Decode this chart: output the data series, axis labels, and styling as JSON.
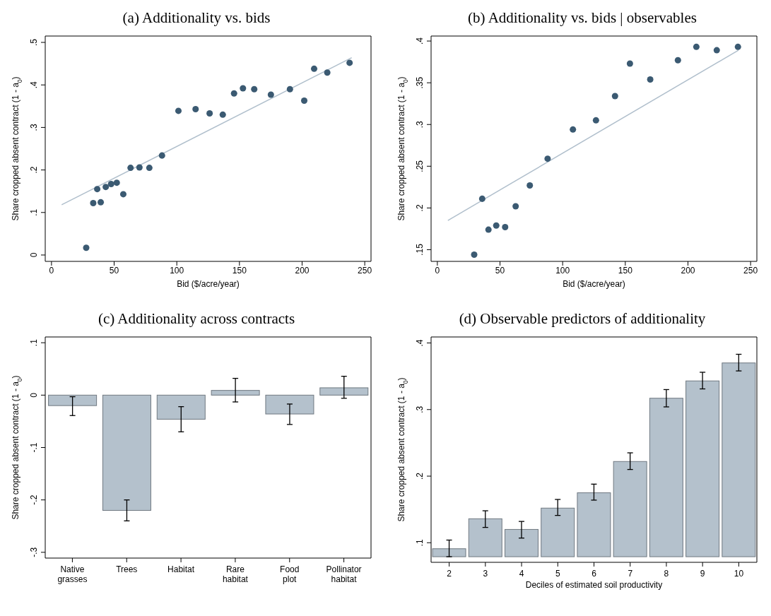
{
  "chart_data": [
    {
      "type": "scatter",
      "title": "(a) Additionality vs. bids",
      "xlabel": "Bid ($/acre/year)",
      "ylabel": "Share cropped absent contract (1 - a$_{0}$)",
      "xlim": [
        -5,
        255
      ],
      "ylim": [
        -0.015,
        0.515
      ],
      "xticks": [
        0,
        50,
        100,
        150,
        200,
        250
      ],
      "yticks": [
        {
          "value": 0,
          "label": "0"
        },
        {
          "value": 0.1,
          "label": ".1"
        },
        {
          "value": 0.2,
          "label": ".2"
        },
        {
          "value": 0.3,
          "label": ".3"
        },
        {
          "value": 0.4,
          "label": ".4"
        },
        {
          "value": 0.5,
          "label": ".5"
        }
      ],
      "series": [
        {
          "type": "scatter",
          "marker": "circle",
          "color": "#3b5a72",
          "x": [
            27.7,
            33.3,
            36.5,
            39.3,
            43.3,
            47.6,
            52.1,
            57.3,
            63.1,
            70.2,
            78.1,
            88.2,
            101.3,
            115.0,
            126.2,
            136.7,
            145.7,
            152.8,
            161.8,
            175.1,
            190.3,
            201.7,
            209.6,
            220.1,
            237.9
          ],
          "values": [
            0.017,
            0.122,
            0.155,
            0.124,
            0.16,
            0.167,
            0.17,
            0.143,
            0.205,
            0.206,
            0.205,
            0.234,
            0.339,
            0.343,
            0.333,
            0.33,
            0.38,
            0.392,
            0.39,
            0.377,
            0.39,
            0.363,
            0.438,
            0.429,
            0.452
          ]
        },
        {
          "type": "line",
          "marker": "none",
          "color": "#b0bfcc",
          "x": [
            8.1,
            239.6
          ],
          "values": [
            0.118,
            0.464
          ]
        }
      ]
    },
    {
      "type": "scatter",
      "title": "(b) Additionality vs. bids | observables",
      "xlabel": "Bid ($/acre/year)",
      "ylabel": "Share cropped absent contract (1 - a$_{0}$)",
      "xlim": [
        -5,
        255
      ],
      "ylim": [
        0.136,
        0.406
      ],
      "xticks": [
        0,
        50,
        100,
        150,
        200,
        250
      ],
      "yticks": [
        {
          "value": 0.15,
          "label": ".15"
        },
        {
          "value": 0.2,
          "label": ".2"
        },
        {
          "value": 0.25,
          "label": ".25"
        },
        {
          "value": 0.3,
          "label": ".3"
        },
        {
          "value": 0.35,
          "label": ".35"
        },
        {
          "value": 0.4,
          "label": ".4"
        }
      ],
      "series": [
        {
          "type": "scatter",
          "marker": "circle",
          "color": "#3b5a72",
          "x": [
            29.4,
            35.8,
            40.8,
            47.0,
            54.1,
            62.5,
            73.8,
            88.0,
            108.2,
            126.6,
            141.8,
            153.7,
            169.9,
            192.0,
            206.7,
            223.0,
            239.9
          ],
          "values": [
            0.144,
            0.211,
            0.174,
            0.179,
            0.177,
            0.202,
            0.227,
            0.259,
            0.294,
            0.305,
            0.334,
            0.373,
            0.354,
            0.377,
            0.393,
            0.389,
            0.393
          ]
        },
        {
          "type": "line",
          "marker": "none",
          "color": "#b0bfcc",
          "x": [
            8.4,
            240.3
          ],
          "values": [
            0.185,
            0.389
          ]
        }
      ]
    },
    {
      "type": "bar",
      "title": "(c) Additionality across contracts",
      "ylabel": "Share cropped absent contract (1 - a$_{0}$)",
      "categories": [
        "Native grasses",
        "Trees",
        "Habitat",
        "Rare habitat",
        "Food plot",
        "Pollinator habitat"
      ],
      "color": "#b4c1cc",
      "ylim": [
        -0.311,
        0.111
      ],
      "yticks": [
        {
          "value": -0.3,
          "label": "-.3"
        },
        {
          "value": -0.2,
          "label": "-.2"
        },
        {
          "value": -0.1,
          "label": "-.1"
        },
        {
          "value": 0,
          "label": "0"
        },
        {
          "value": 0.1,
          "label": ".1"
        }
      ],
      "values": [
        -0.02,
        -0.22,
        -0.046,
        0.009,
        -0.036,
        0.014
      ],
      "errors": [
        [
          -0.039,
          -0.003
        ],
        [
          -0.24,
          -0.2
        ],
        [
          -0.07,
          -0.022
        ],
        [
          -0.013,
          0.032
        ],
        [
          -0.056,
          -0.017
        ],
        [
          -0.006,
          0.036
        ]
      ]
    },
    {
      "type": "bar",
      "title": "(d) Observable predictors of additionality",
      "xlabel": "Deciles of estimated soil productivity",
      "ylabel": "Share cropped absent contract (1 - a$_{0}$)",
      "categories": [
        "2",
        "3",
        "4",
        "5",
        "6",
        "7",
        "8",
        "9",
        "10"
      ],
      "color": "#b4c1cc",
      "ylim": [
        0.0706,
        0.409
      ],
      "yticks": [
        {
          "value": 0.1,
          "label": ".1"
        },
        {
          "value": 0.2,
          "label": ".2"
        },
        {
          "value": 0.3,
          "label": ".3"
        },
        {
          "value": 0.4,
          "label": ".4"
        }
      ],
      "base": [
        0.079,
        0.079,
        0.079,
        0.079,
        0.079,
        0.079,
        0.079,
        0.079,
        0.079
      ],
      "values": [
        0.012,
        0.057,
        0.041,
        0.073,
        0.096,
        0.143,
        0.238,
        0.264,
        0.291
      ],
      "errors": [
        [
          0.079,
          0.104
        ],
        [
          0.123,
          0.148
        ],
        [
          0.107,
          0.132
        ],
        [
          0.141,
          0.165
        ],
        [
          0.164,
          0.188
        ],
        [
          0.21,
          0.235
        ],
        [
          0.304,
          0.33
        ],
        [
          0.331,
          0.356
        ],
        [
          0.358,
          0.383
        ]
      ]
    }
  ]
}
